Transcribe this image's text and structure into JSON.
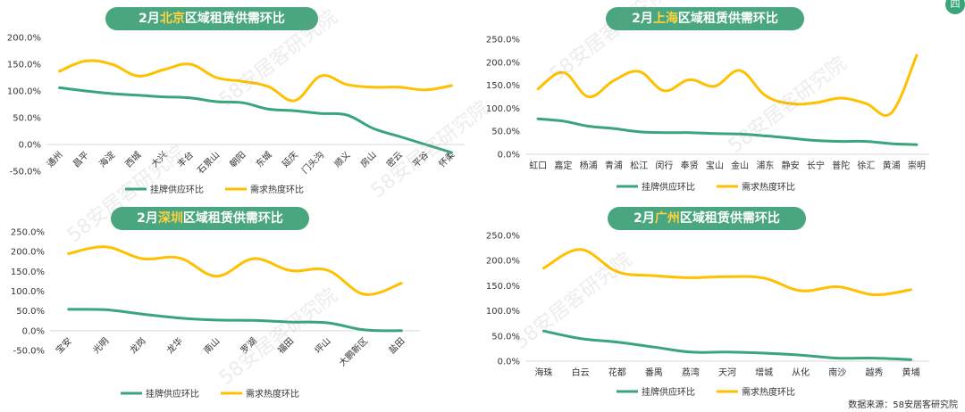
{
  "source_note": "数据来源：58安居客研究院",
  "watermark": "58安居客研究院",
  "corner_badge": "四",
  "colors": {
    "supply": "#3aa57a",
    "demand": "#ffc000",
    "title_bg": "#4aa67f",
    "title_city": "#ffd23f"
  },
  "charts": [
    {
      "id": "beijing",
      "title_prefix": "2月",
      "city": "北京",
      "title_suffix": "区域租赁供需环比",
      "y_ticks": [
        "200.0%",
        "150.0%",
        "100.0%",
        "50.0%",
        "0.0%",
        "-50.0%"
      ],
      "legend": {
        "supply": "挂牌供应环比",
        "demand": "需求热度环比"
      }
    },
    {
      "id": "shanghai",
      "title_prefix": "2月",
      "city": "上海",
      "title_suffix": "区域租赁供需环比",
      "y_ticks": [
        "250.0%",
        "200.0%",
        "150.0%",
        "100.0%",
        "50.0%",
        "0.0%"
      ],
      "legend": {
        "supply": "挂牌供应环比",
        "demand": "需求热度环比"
      }
    },
    {
      "id": "shenzhen",
      "title_prefix": "2月",
      "city": "深圳",
      "title_suffix": "区域租赁供需环比",
      "y_ticks": [
        "250.0%",
        "200.0%",
        "150.0%",
        "100.0%",
        "50.0%",
        "0.0%",
        "-50.0%"
      ],
      "legend": {
        "supply": "挂牌供应环比",
        "demand": "需求热度环比"
      }
    },
    {
      "id": "guangzhou",
      "title_prefix": "2月",
      "city": "广州",
      "title_suffix": "区域租赁供需环比",
      "y_ticks": [
        "250.0%",
        "200.0%",
        "150.0%",
        "100.0%",
        "50.0%",
        "0.0%"
      ],
      "legend": {
        "supply": "挂牌供应环比",
        "demand": "需求热度环比"
      }
    }
  ],
  "chart_data": [
    {
      "type": "line",
      "title": "2月北京区域租赁供需环比",
      "ylim": [
        -50,
        200
      ],
      "categories": [
        "通州",
        "昌平",
        "海淀",
        "西城",
        "大兴",
        "丰台",
        "石景山",
        "朝阳",
        "东城",
        "延庆",
        "门头沟",
        "顺义",
        "房山",
        "密云",
        "平谷",
        "怀柔"
      ],
      "series": [
        {
          "name": "挂牌供应环比",
          "values": [
            106,
            100,
            95,
            92,
            89,
            87,
            80,
            78,
            66,
            63,
            58,
            55,
            30,
            15,
            0,
            -15
          ]
        },
        {
          "name": "需求热度环比",
          "values": [
            137,
            156,
            150,
            128,
            140,
            150,
            125,
            118,
            108,
            82,
            128,
            112,
            107,
            107,
            102,
            110
          ]
        }
      ]
    },
    {
      "type": "line",
      "title": "2月上海区域租赁供需环比",
      "ylim": [
        0,
        250
      ],
      "categories": [
        "虹口",
        "嘉定",
        "杨浦",
        "青浦",
        "松江",
        "闵行",
        "奉贤",
        "宝山",
        "金山",
        "浦东",
        "静安",
        "长宁",
        "普陀",
        "徐汇",
        "黄浦",
        "崇明"
      ],
      "series": [
        {
          "name": "挂牌供应环比",
          "values": [
            77,
            72,
            61,
            56,
            49,
            47,
            47,
            45,
            44,
            40,
            35,
            30,
            28,
            28,
            23,
            21
          ]
        },
        {
          "name": "需求热度环比",
          "values": [
            142,
            178,
            125,
            160,
            180,
            138,
            162,
            148,
            182,
            128,
            110,
            112,
            122,
            110,
            90,
            215
          ]
        }
      ]
    },
    {
      "type": "line",
      "title": "2月深圳区域租赁供需环比",
      "ylim": [
        -50,
        250
      ],
      "categories": [
        "宝安",
        "光明",
        "龙岗",
        "龙华",
        "南山",
        "罗湖",
        "福田",
        "坪山",
        "大鹏新区",
        "盐田"
      ],
      "series": [
        {
          "name": "挂牌供应环比",
          "values": [
            54,
            53,
            42,
            32,
            27,
            26,
            22,
            20,
            2,
            0
          ]
        },
        {
          "name": "需求热度环比",
          "values": [
            195,
            212,
            182,
            184,
            138,
            182,
            152,
            153,
            92,
            120
          ]
        }
      ]
    },
    {
      "type": "line",
      "title": "2月广州区域租赁供需环比",
      "ylim": [
        0,
        250
      ],
      "categories": [
        "海珠",
        "白云",
        "花都",
        "番禺",
        "荔湾",
        "天河",
        "增城",
        "从化",
        "南沙",
        "越秀",
        "黄埔"
      ],
      "series": [
        {
          "name": "挂牌供应环比",
          "values": [
            60,
            45,
            38,
            28,
            18,
            18,
            16,
            12,
            6,
            6,
            3
          ]
        },
        {
          "name": "需求热度环比",
          "values": [
            185,
            222,
            178,
            170,
            166,
            168,
            165,
            140,
            148,
            132,
            142
          ]
        }
      ]
    }
  ]
}
